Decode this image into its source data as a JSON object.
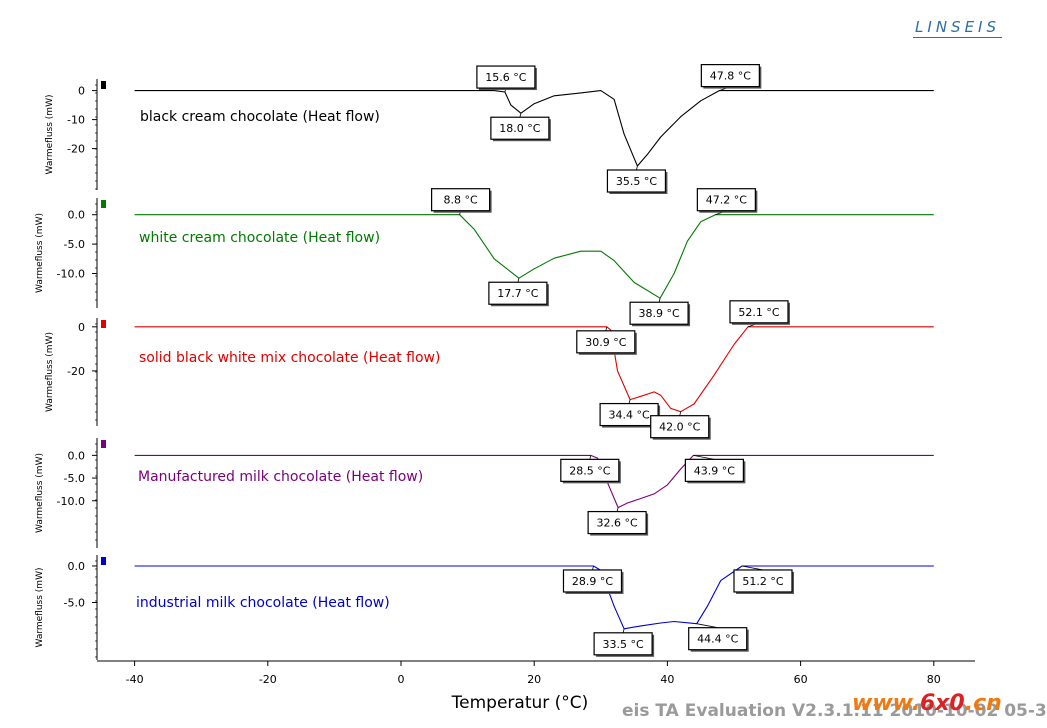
{
  "brand": "LINSEIS",
  "footer_text": "eis  TA Evaluation V2.3.1.11  2010-10-02 05-3",
  "watermark": {
    "prefix": "www.",
    "mid": "6x0",
    "suffix": ".cn"
  },
  "chart_data": {
    "type": "line",
    "xlabel": "Temperatur (°C)",
    "xlim": [
      -45,
      86
    ],
    "x_ticks": [
      -40,
      -20,
      0,
      20,
      40,
      60,
      80
    ],
    "series": [
      {
        "name": "black cream chocolate (Heat flow)",
        "ylabel": "Warmefluss (mW)",
        "color": "#000000",
        "ylim": [
          -26,
          4
        ],
        "y_ticks": [
          0,
          -10,
          -20
        ],
        "y_tick_labels": [
          "0",
          "-10",
          "-20"
        ],
        "x": [
          -40,
          14,
          15.6,
          16.5,
          18,
          20,
          23,
          27,
          30,
          32,
          33.5,
          35.5,
          37,
          39,
          42,
          45,
          47.8,
          80
        ],
        "values": [
          0,
          0,
          -0.5,
          -5,
          -7.8,
          -4.5,
          -1.8,
          -0.8,
          0,
          -3,
          -15,
          -26,
          -22,
          -16,
          -9,
          -3.5,
          0,
          0
        ],
        "annotations": [
          {
            "label": "15.6 °C",
            "x": 15.6,
            "y": -0.5,
            "side": "above"
          },
          {
            "label": "18.0 °C",
            "x": 18.0,
            "y": -7.8,
            "side": "below"
          },
          {
            "label": "35.5 °C",
            "x": 35.5,
            "y": -26,
            "side": "below"
          },
          {
            "label": "47.8 °C",
            "x": 47.8,
            "y": 0,
            "side": "above"
          }
        ]
      },
      {
        "name": "white cream chocolate (Heat flow)",
        "ylabel": "Warmefluss (mW)",
        "color": "#007a00",
        "ylim": [
          -14.5,
          2.5
        ],
        "y_ticks": [
          0,
          -5,
          -10
        ],
        "y_tick_labels": [
          "0.0",
          "-5.0",
          "-10.0"
        ],
        "x": [
          -40,
          8.8,
          11,
          14,
          17.7,
          20,
          23,
          27,
          30,
          32,
          35,
          38.9,
          41,
          43,
          45,
          47.2,
          80
        ],
        "values": [
          0,
          0,
          -2.5,
          -7.5,
          -10.8,
          -9.2,
          -7.4,
          -6.2,
          -6.2,
          -7.8,
          -11.5,
          -14.2,
          -10,
          -4.5,
          -1.2,
          0,
          0
        ],
        "annotations": [
          {
            "label": "8.8 °C",
            "x": 8.8,
            "y": 0,
            "side": "above"
          },
          {
            "label": "17.7 °C",
            "x": 17.7,
            "y": -10.8,
            "side": "below"
          },
          {
            "label": "38.9 °C",
            "x": 38.9,
            "y": -14.2,
            "side": "below"
          },
          {
            "label": "47.2 °C",
            "x": 47.2,
            "y": 0,
            "side": "above"
          }
        ]
      },
      {
        "name": "solid black white mix chocolate (Heat flow)",
        "ylabel": "Warmefluss (mW)",
        "color": "#e00000",
        "ylim": [
          -40,
          4
        ],
        "y_ticks": [
          0,
          -20
        ],
        "y_tick_labels": [
          "0",
          "-20"
        ],
        "x": [
          -40,
          30.9,
          31.5,
          32.5,
          34.4,
          36,
          38,
          39,
          40.5,
          42,
          44,
          47,
          50,
          52.1,
          80
        ],
        "values": [
          0,
          0,
          -1.5,
          -20,
          -33,
          -31.5,
          -29.5,
          -31,
          -37,
          -38.5,
          -35,
          -22,
          -8,
          0,
          0
        ],
        "annotations": [
          {
            "label": "30.9 °C",
            "x": 30.9,
            "y": 0,
            "side": "below"
          },
          {
            "label": "34.4 °C",
            "x": 34.4,
            "y": -33,
            "side": "below"
          },
          {
            "label": "42.0 °C",
            "x": 42.0,
            "y": -38.5,
            "side": "below"
          },
          {
            "label": "52.1 °C",
            "x": 52.1,
            "y": 0,
            "side": "above"
          }
        ]
      },
      {
        "name": "Manufactured milk chocolate (Heat flow)",
        "ylabel": "Warmefluss (mW)",
        "color": "#7a007a",
        "ylim": [
          -16,
          2.5
        ],
        "y_ticks": [
          0,
          -5,
          -10
        ],
        "y_tick_labels": [
          "0.0",
          "-5.0",
          "-10.0"
        ],
        "x": [
          -40,
          28.5,
          29.5,
          31,
          32.6,
          34,
          36,
          38,
          40,
          42,
          43.9,
          80
        ],
        "values": [
          0,
          0,
          -0.6,
          -6,
          -11.5,
          -10.5,
          -9.5,
          -8.5,
          -6.5,
          -3,
          0,
          0
        ],
        "annotations": [
          {
            "label": "28.5 °C",
            "x": 28.5,
            "y": 0,
            "side": "below"
          },
          {
            "label": "32.6 °C",
            "x": 32.6,
            "y": -11.5,
            "side": "below"
          },
          {
            "label": "43.9 °C",
            "x": 43.9,
            "y": 0,
            "side": "below"
          }
        ]
      },
      {
        "name": "industrial milk chocolate (Heat flow)",
        "ylabel": "Warmefluss (mW)",
        "color": "#0000cc",
        "ylim": [
          -11.5,
          1.5
        ],
        "y_ticks": [
          0,
          -5
        ],
        "y_tick_labels": [
          "0.0",
          "-5.0"
        ],
        "x": [
          -40,
          28.9,
          30,
          32,
          33.5,
          36,
          39,
          41,
          44.4,
          46,
          48,
          51.2,
          80
        ],
        "values": [
          0,
          0,
          -0.6,
          -5.5,
          -8.6,
          -8.2,
          -7.8,
          -7.6,
          -7.9,
          -5.5,
          -2,
          0,
          0
        ],
        "annotations": [
          {
            "label": "28.9 °C",
            "x": 28.9,
            "y": 0,
            "side": "below"
          },
          {
            "label": "33.5 °C",
            "x": 33.5,
            "y": -8.6,
            "side": "below"
          },
          {
            "label": "44.4 °C",
            "x": 44.4,
            "y": -7.9,
            "side": "below"
          },
          {
            "label": "51.2 °C",
            "x": 51.2,
            "y": 0,
            "side": "below"
          }
        ]
      }
    ]
  }
}
